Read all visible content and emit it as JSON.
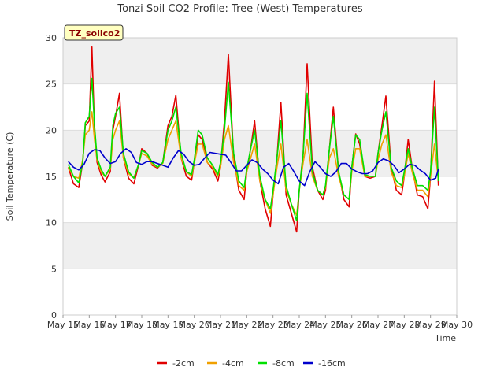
{
  "chart_data": {
    "type": "line",
    "title": "Tonzi Soil CO2 Profile: Tree (West) Temperatures",
    "xlabel": "Time",
    "ylabel": "Soil Temperature (C)",
    "ylim": [
      0,
      30
    ],
    "yticks": [
      0,
      5,
      10,
      15,
      20,
      25,
      30
    ],
    "xlim": [
      15,
      30
    ],
    "xticks": [
      15,
      16,
      17,
      18,
      19,
      20,
      21,
      22,
      23,
      24,
      25,
      26,
      27,
      28,
      29,
      30
    ],
    "xtick_labels": [
      "May 15",
      "May 16",
      "May 17",
      "May 18",
      "May 19",
      "May 20",
      "May 21",
      "May 22",
      "May 23",
      "May 24",
      "May 25",
      "May 26",
      "May 27",
      "May 28",
      "May 29",
      "May 30"
    ],
    "grid": true,
    "banded_background": true,
    "legend_position": "bottom",
    "badge": "TZ_soilco2",
    "series": [
      {
        "name": "-2cm",
        "color": "#e00000",
        "x": [
          15.2,
          15.4,
          15.6,
          15.75,
          15.85,
          16.0,
          16.1,
          16.2,
          16.3,
          16.45,
          16.6,
          16.8,
          16.9,
          17.0,
          17.15,
          17.3,
          17.5,
          17.7,
          17.9,
          18.0,
          18.2,
          18.4,
          18.6,
          18.8,
          19.0,
          19.15,
          19.3,
          19.5,
          19.7,
          19.9,
          20.0,
          20.15,
          20.3,
          20.5,
          20.7,
          20.9,
          21.0,
          21.15,
          21.3,
          21.5,
          21.7,
          21.9,
          22.0,
          22.15,
          22.3,
          22.5,
          22.7,
          22.9,
          23.0,
          23.15,
          23.3,
          23.5,
          23.7,
          23.9,
          24.0,
          24.15,
          24.3,
          24.5,
          24.7,
          24.9,
          25.0,
          25.15,
          25.3,
          25.5,
          25.7,
          25.9,
          26.0,
          26.15,
          26.3,
          26.5,
          26.7,
          26.9,
          27.0,
          27.15,
          27.3,
          27.5,
          27.7,
          27.9,
          28.0,
          28.15,
          28.3,
          28.5,
          28.7,
          28.9,
          29.0,
          29.15,
          29.3
        ],
        "y": [
          16.0,
          14.2,
          13.8,
          16.5,
          20.5,
          21.0,
          29.0,
          20.0,
          16.5,
          15.2,
          14.4,
          15.5,
          20.0,
          21.5,
          24.0,
          17.0,
          14.8,
          14.2,
          16.5,
          18.0,
          17.5,
          16.2,
          15.9,
          16.5,
          20.5,
          21.5,
          23.8,
          17.0,
          15.0,
          14.6,
          16.5,
          19.5,
          19.0,
          16.5,
          15.8,
          14.5,
          16.0,
          21.0,
          28.2,
          17.0,
          13.5,
          12.5,
          15.5,
          18.0,
          21.0,
          14.5,
          11.5,
          9.6,
          13.0,
          17.0,
          23.0,
          13.0,
          11.0,
          9.0,
          13.5,
          17.5,
          27.2,
          16.0,
          13.5,
          12.5,
          13.5,
          18.0,
          22.5,
          15.5,
          12.5,
          11.7,
          16.0,
          19.6,
          18.5,
          15.0,
          14.8,
          15.0,
          17.5,
          20.5,
          23.7,
          16.0,
          13.5,
          13.0,
          15.0,
          19.0,
          16.0,
          13.0,
          12.8,
          11.5,
          15.0,
          25.3,
          14.0
        ]
      },
      {
        "name": "-4cm",
        "color": "#f0a000",
        "x": [
          15.2,
          15.4,
          15.6,
          15.75,
          15.85,
          16.0,
          16.1,
          16.2,
          16.3,
          16.45,
          16.6,
          16.8,
          16.9,
          17.0,
          17.15,
          17.3,
          17.5,
          17.7,
          17.9,
          18.0,
          18.2,
          18.4,
          18.6,
          18.8,
          19.0,
          19.15,
          19.3,
          19.5,
          19.7,
          19.9,
          20.0,
          20.15,
          20.3,
          20.5,
          20.7,
          20.9,
          21.0,
          21.15,
          21.3,
          21.5,
          21.7,
          21.9,
          22.0,
          22.15,
          22.3,
          22.5,
          22.7,
          22.9,
          23.0,
          23.15,
          23.3,
          23.5,
          23.7,
          23.9,
          24.0,
          24.15,
          24.3,
          24.5,
          24.7,
          24.9,
          25.0,
          25.15,
          25.3,
          25.5,
          25.7,
          25.9,
          26.0,
          26.15,
          26.3,
          26.5,
          26.7,
          26.9,
          27.0,
          27.15,
          27.3,
          27.5,
          27.7,
          27.9,
          28.0,
          28.15,
          28.3,
          28.5,
          28.7,
          28.9,
          29.0,
          29.15,
          29.3
        ],
        "y": [
          16.0,
          15.0,
          14.8,
          16.8,
          19.5,
          20.0,
          22.0,
          19.0,
          16.8,
          15.5,
          15.0,
          15.8,
          19.0,
          20.0,
          21.0,
          17.0,
          15.3,
          14.8,
          16.5,
          17.5,
          17.2,
          16.3,
          16.0,
          16.4,
          19.0,
          20.0,
          21.0,
          17.0,
          15.5,
          15.0,
          16.4,
          18.5,
          18.5,
          16.5,
          16.0,
          15.0,
          16.0,
          19.0,
          20.5,
          16.5,
          14.0,
          13.5,
          15.5,
          17.0,
          18.5,
          14.5,
          12.5,
          11.0,
          13.0,
          16.0,
          18.5,
          13.5,
          12.0,
          10.8,
          13.5,
          16.5,
          19.0,
          15.0,
          13.5,
          13.0,
          13.8,
          17.0,
          18.0,
          15.0,
          13.0,
          12.5,
          15.5,
          18.0,
          18.0,
          15.0,
          15.0,
          15.0,
          16.8,
          18.5,
          19.5,
          15.5,
          14.0,
          13.8,
          15.0,
          17.5,
          15.5,
          13.5,
          13.5,
          12.8,
          15.0,
          18.5,
          14.5
        ]
      },
      {
        "name": "-8cm",
        "color": "#00e000",
        "x": [
          15.2,
          15.4,
          15.6,
          15.75,
          15.85,
          16.0,
          16.1,
          16.2,
          16.3,
          16.45,
          16.6,
          16.8,
          16.9,
          17.0,
          17.15,
          17.3,
          17.5,
          17.7,
          17.9,
          18.0,
          18.2,
          18.4,
          18.6,
          18.8,
          19.0,
          19.15,
          19.3,
          19.5,
          19.7,
          19.9,
          20.0,
          20.15,
          20.3,
          20.5,
          20.7,
          20.9,
          21.0,
          21.15,
          21.3,
          21.5,
          21.7,
          21.9,
          22.0,
          22.15,
          22.3,
          22.5,
          22.7,
          22.9,
          23.0,
          23.15,
          23.3,
          23.5,
          23.7,
          23.9,
          24.0,
          24.15,
          24.3,
          24.5,
          24.7,
          24.9,
          25.0,
          25.15,
          25.3,
          25.5,
          25.7,
          25.9,
          26.0,
          26.15,
          26.3,
          26.5,
          26.7,
          26.9,
          27.0,
          27.15,
          27.3,
          27.5,
          27.7,
          27.9,
          28.0,
          28.15,
          28.3,
          28.5,
          28.7,
          28.9,
          29.0,
          29.15,
          29.3
        ],
        "y": [
          16.3,
          15.0,
          14.3,
          16.5,
          20.8,
          21.5,
          25.6,
          20.5,
          17.0,
          15.8,
          15.0,
          16.0,
          20.5,
          21.8,
          22.5,
          17.5,
          15.5,
          14.8,
          16.5,
          17.8,
          17.5,
          16.5,
          16.0,
          16.5,
          20.0,
          21.0,
          22.5,
          17.5,
          15.5,
          15.2,
          16.8,
          20.0,
          19.5,
          17.0,
          16.2,
          15.2,
          16.5,
          20.0,
          25.2,
          17.5,
          14.5,
          13.8,
          15.8,
          18.0,
          20.0,
          15.0,
          12.5,
          11.5,
          13.5,
          17.0,
          21.0,
          14.0,
          12.0,
          10.2,
          13.5,
          17.5,
          24.0,
          15.5,
          13.5,
          13.0,
          14.0,
          18.0,
          21.5,
          15.5,
          13.0,
          12.5,
          16.0,
          19.5,
          19.0,
          15.2,
          15.0,
          15.0,
          17.5,
          20.0,
          22.0,
          16.0,
          14.5,
          14.0,
          15.5,
          18.0,
          16.0,
          14.0,
          14.0,
          13.5,
          15.5,
          22.5,
          14.5
        ]
      },
      {
        "name": "-16cm",
        "color": "#0000cc",
        "x": [
          15.2,
          15.4,
          15.6,
          15.8,
          16.0,
          16.2,
          16.4,
          16.6,
          16.8,
          17.0,
          17.2,
          17.4,
          17.6,
          17.8,
          18.0,
          18.2,
          18.4,
          18.6,
          18.8,
          19.0,
          19.2,
          19.4,
          19.6,
          19.8,
          20.0,
          20.2,
          20.4,
          20.6,
          20.8,
          21.0,
          21.2,
          21.4,
          21.6,
          21.8,
          22.0,
          22.2,
          22.4,
          22.6,
          22.8,
          23.0,
          23.2,
          23.4,
          23.6,
          23.8,
          24.0,
          24.2,
          24.4,
          24.6,
          24.8,
          25.0,
          25.2,
          25.4,
          25.6,
          25.8,
          26.0,
          26.2,
          26.4,
          26.6,
          26.8,
          27.0,
          27.2,
          27.4,
          27.6,
          27.8,
          28.0,
          28.2,
          28.4,
          28.6,
          28.8,
          29.0,
          29.2,
          29.3
        ],
        "y": [
          16.6,
          16.0,
          15.7,
          16.3,
          17.5,
          17.9,
          17.8,
          17.0,
          16.4,
          16.6,
          17.5,
          18.0,
          17.6,
          16.5,
          16.3,
          16.6,
          16.6,
          16.4,
          16.2,
          16.0,
          17.0,
          17.8,
          17.4,
          16.6,
          16.2,
          16.3,
          17.0,
          17.6,
          17.5,
          17.4,
          17.3,
          16.5,
          15.6,
          15.6,
          16.2,
          16.8,
          16.5,
          15.8,
          15.3,
          14.6,
          14.2,
          16.0,
          16.4,
          15.5,
          14.5,
          14.0,
          15.5,
          16.6,
          16.0,
          15.3,
          15.0,
          15.5,
          16.4,
          16.4,
          15.8,
          15.5,
          15.3,
          15.3,
          15.6,
          16.5,
          16.9,
          16.7,
          16.2,
          15.4,
          15.8,
          16.3,
          16.2,
          15.7,
          15.3,
          14.6,
          14.8,
          15.8
        ]
      }
    ]
  }
}
